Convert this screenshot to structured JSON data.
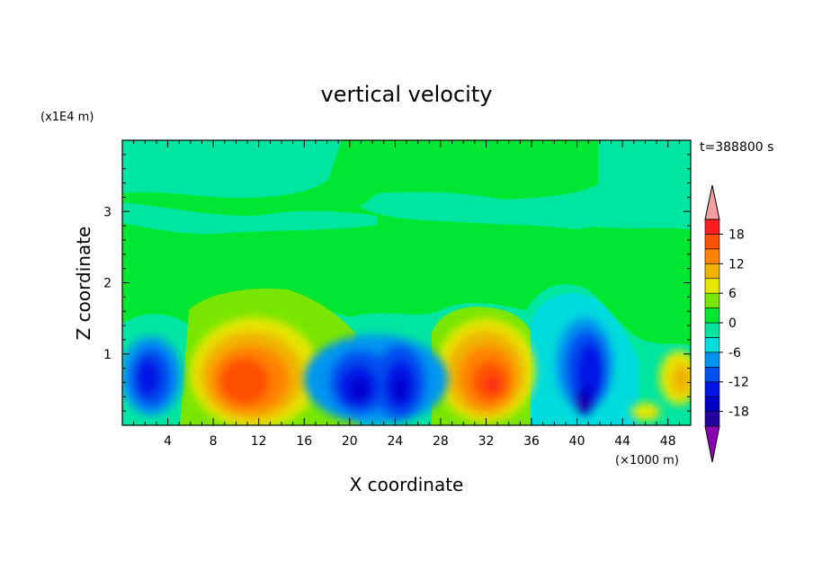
{
  "chart_data": {
    "type": "heatmap",
    "title": "vertical velocity",
    "xlabel": "X coordinate",
    "ylabel": "Z coordinate",
    "x_units": "(×1000 m)",
    "y_units": "(x1E4 m)",
    "time_label": "t=388800 s",
    "xlim": [
      0,
      50
    ],
    "ylim": [
      0,
      4
    ],
    "x_ticks": [
      4,
      8,
      12,
      16,
      20,
      24,
      28,
      32,
      36,
      40,
      44,
      48
    ],
    "y_ticks": [
      1,
      2,
      3
    ],
    "colorbar": {
      "levels": [
        -21,
        -18,
        -15,
        -12,
        -9,
        -6,
        -3,
        0,
        3,
        6,
        9,
        12,
        15,
        18,
        21
      ],
      "labels": [
        18,
        12,
        6,
        0,
        -6,
        -12,
        -18
      ],
      "colors": [
        "#8c00b4",
        "#2800a0",
        "#0000c8",
        "#0014e6",
        "#0050f0",
        "#0096f0",
        "#00dcdc",
        "#00e6a0",
        "#00e632",
        "#78e600",
        "#e6e600",
        "#f0b400",
        "#ff8200",
        "#ff5000",
        "#ff1e1e",
        "#f5a0a0"
      ]
    },
    "features": [
      {
        "type": "updraft",
        "x": 11,
        "z": 0.6,
        "peak": 14
      },
      {
        "type": "downdraft",
        "x": 2.5,
        "z": 0.7,
        "peak": -13
      },
      {
        "type": "downdraft",
        "x": 20.5,
        "z": 0.5,
        "peak": -15
      },
      {
        "type": "downdraft",
        "x": 24.5,
        "z": 0.55,
        "peak": -15
      },
      {
        "type": "updraft",
        "x": 32.5,
        "z": 0.6,
        "peak": 16
      },
      {
        "type": "downdraft",
        "x": 41,
        "z": 0.5,
        "peak": -18
      },
      {
        "type": "updraft",
        "x": 48.5,
        "z": 0.6,
        "peak": 9
      }
    ]
  }
}
